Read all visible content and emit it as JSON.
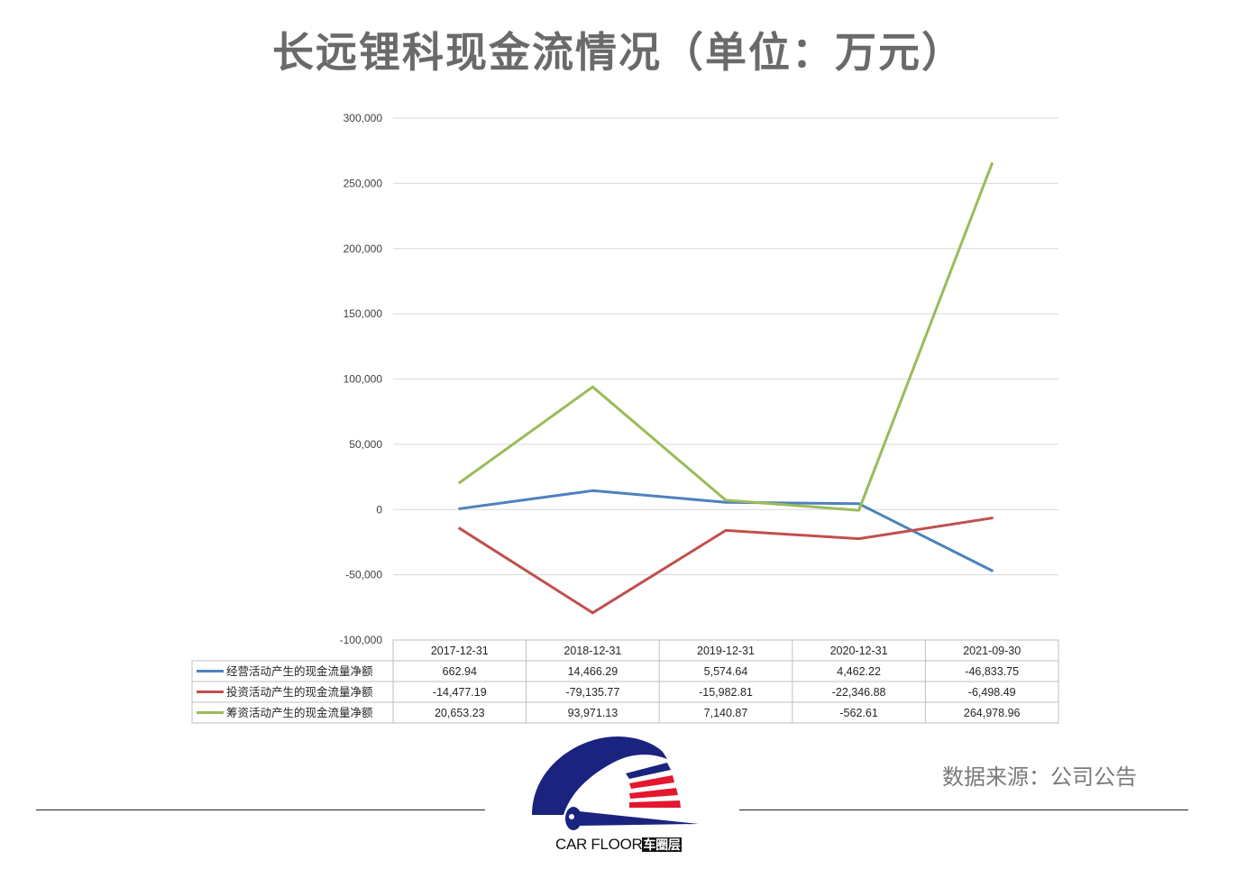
{
  "title": "长远锂科现金流情况（单位：万元）",
  "source": "数据来源：公司公告",
  "logo": {
    "text": "CAR FLOOR",
    "badge": "车圈层"
  },
  "colors": {
    "operating": "#4f81bd",
    "investing": "#c0504d",
    "financing": "#9bbb59",
    "grid": "#d9d9d9",
    "title": "#6a6a6a"
  },
  "chart_data": {
    "type": "line",
    "title": "长远锂科现金流情况（单位：万元）",
    "xlabel": "",
    "ylabel": "",
    "categories": [
      "2017-12-31",
      "2018-12-31",
      "2019-12-31",
      "2020-12-31",
      "2021-09-30"
    ],
    "ylim": [
      -100000,
      300000
    ],
    "yticks": [
      -100000,
      -50000,
      0,
      50000,
      100000,
      150000,
      200000,
      250000,
      300000
    ],
    "ytick_labels": [
      "-100,000",
      "-50,000",
      "0",
      "50,000",
      "100,000",
      "150,000",
      "200,000",
      "250,000",
      "300,000"
    ],
    "grid": true,
    "legend": "data-table",
    "series": [
      {
        "name": "经营活动产生的现金流量净额",
        "color": "#4f81bd",
        "values": [
          662.94,
          14466.29,
          5574.64,
          4462.22,
          -46833.75
        ],
        "labels": [
          "662.94",
          "14,466.29",
          "5,574.64",
          "4,462.22",
          "-46,833.75"
        ]
      },
      {
        "name": "投资活动产生的现金流量净额",
        "color": "#c0504d",
        "values": [
          -14477.19,
          -79135.77,
          -15982.81,
          -22346.88,
          -6498.49
        ],
        "labels": [
          "-14,477.19",
          "-79,135.77",
          "-15,982.81",
          "-22,346.88",
          "-6,498.49"
        ]
      },
      {
        "name": "筹资活动产生的现金流量净额",
        "color": "#9bbb59",
        "values": [
          20653.23,
          93971.13,
          7140.87,
          -562.61,
          264978.96
        ],
        "labels": [
          "20,653.23",
          "93,971.13",
          "7,140.87",
          "-562.61",
          "264,978.96"
        ]
      }
    ]
  }
}
